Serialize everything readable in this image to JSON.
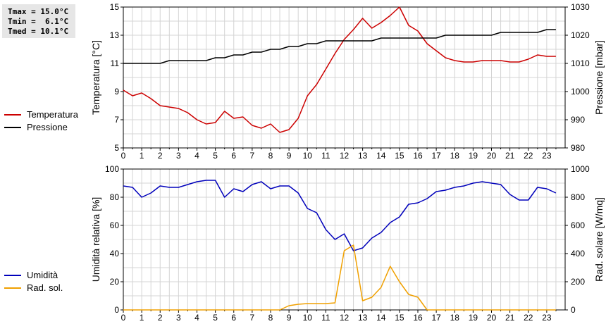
{
  "stats": {
    "tmax": "Tmax = 15.0°C",
    "tmin": "Tmin =  6.1°C",
    "tmed": "Tmed = 10.1°C"
  },
  "legend_top": [
    {
      "label": "Temperatura",
      "color": "#cc0000"
    },
    {
      "label": "Pressione",
      "color": "#000000"
    }
  ],
  "legend_bottom": [
    {
      "label": "Umidità",
      "color": "#0000bb"
    },
    {
      "label": "Rad. sol.",
      "color": "#f0a000"
    }
  ],
  "chart_data": [
    {
      "type": "line",
      "ylabel": "Temperatura [°C]",
      "y2label": "Pressione [mbar]",
      "xlim": [
        0,
        24
      ],
      "ylim": [
        5,
        15
      ],
      "y2lim": [
        980,
        1030
      ],
      "yticks": [
        "5",
        "7",
        "9",
        "11",
        "13",
        "15"
      ],
      "y2ticks": [
        "980",
        "990",
        "1000",
        "1010",
        "1020",
        "1030"
      ],
      "xticks": [
        "0",
        "1",
        "2",
        "3",
        "4",
        "5",
        "6",
        "7",
        "8",
        "9",
        "10",
        "11",
        "12",
        "13",
        "14",
        "15",
        "16",
        "17",
        "18",
        "19",
        "20",
        "21",
        "22",
        "23"
      ],
      "grid": true,
      "series": [
        {
          "name": "Temperatura",
          "axis": "left",
          "color": "#cc0000",
          "x": [
            0,
            0.5,
            1,
            1.5,
            2,
            2.5,
            3,
            3.5,
            4,
            4.5,
            5,
            5.5,
            6,
            6.5,
            7,
            7.5,
            8,
            8.5,
            9,
            9.5,
            10,
            10.5,
            11,
            11.5,
            12,
            12.5,
            13,
            13.5,
            14,
            14.5,
            15,
            15.5,
            16,
            16.5,
            17,
            17.5,
            18,
            18.5,
            19,
            19.5,
            20,
            20.5,
            21,
            21.5,
            22,
            22.5,
            23,
            23.5
          ],
          "y": [
            9.1,
            8.7,
            8.9,
            8.5,
            8.0,
            7.9,
            7.8,
            7.5,
            7.0,
            6.7,
            6.8,
            7.6,
            7.1,
            7.2,
            6.6,
            6.4,
            6.7,
            6.1,
            6.3,
            7.1,
            8.7,
            9.5,
            10.6,
            11.7,
            12.7,
            13.4,
            14.2,
            13.5,
            13.9,
            14.4,
            15.0,
            13.7,
            13.3,
            12.4,
            11.9,
            11.4,
            11.2,
            11.1,
            11.1,
            11.2,
            11.2,
            11.2,
            11.1,
            11.1,
            11.3,
            11.6,
            11.5,
            11.5
          ]
        },
        {
          "name": "Pressione",
          "axis": "right",
          "color": "#000000",
          "x": [
            0,
            0.5,
            1,
            1.5,
            2,
            2.5,
            3,
            3.5,
            4,
            4.5,
            5,
            5.5,
            6,
            6.5,
            7,
            7.5,
            8,
            8.5,
            9,
            9.5,
            10,
            10.5,
            11,
            11.5,
            12,
            12.5,
            13,
            13.5,
            14,
            14.5,
            15,
            15.5,
            16,
            16.5,
            17,
            17.5,
            18,
            18.5,
            19,
            19.5,
            20,
            20.5,
            21,
            21.5,
            22,
            22.5,
            23,
            23.5
          ],
          "y": [
            1010,
            1010,
            1010,
            1010,
            1010,
            1011,
            1011,
            1011,
            1011,
            1011,
            1012,
            1012,
            1013,
            1013,
            1014,
            1014,
            1015,
            1015,
            1016,
            1016,
            1017,
            1017,
            1018,
            1018,
            1018,
            1018,
            1018,
            1018,
            1019,
            1019,
            1019,
            1019,
            1019,
            1019,
            1019,
            1020,
            1020,
            1020,
            1020,
            1020,
            1020,
            1021,
            1021,
            1021,
            1021,
            1021,
            1022,
            1022
          ]
        }
      ]
    },
    {
      "type": "line",
      "ylabel": "Umidità relativa [%]",
      "y2label": "Rad. solare [W/mq]",
      "xlim": [
        0,
        24
      ],
      "ylim": [
        0,
        100
      ],
      "y2lim": [
        0,
        1000
      ],
      "yticks": [
        "0",
        "20",
        "40",
        "60",
        "80",
        "100"
      ],
      "y2ticks": [
        "0",
        "200",
        "400",
        "600",
        "800",
        "1000"
      ],
      "xticks": [
        "0",
        "1",
        "2",
        "3",
        "4",
        "5",
        "6",
        "7",
        "8",
        "9",
        "10",
        "11",
        "12",
        "13",
        "14",
        "15",
        "16",
        "17",
        "18",
        "19",
        "20",
        "21",
        "22",
        "23"
      ],
      "grid": true,
      "series": [
        {
          "name": "Umidità",
          "axis": "left",
          "color": "#0000bb",
          "x": [
            0,
            0.5,
            1,
            1.5,
            2,
            2.5,
            3,
            3.5,
            4,
            4.5,
            5,
            5.5,
            6,
            6.5,
            7,
            7.5,
            8,
            8.5,
            9,
            9.5,
            10,
            10.5,
            11,
            11.5,
            12,
            12.5,
            13,
            13.5,
            14,
            14.5,
            15,
            15.5,
            16,
            16.5,
            17,
            17.5,
            18,
            18.5,
            19,
            19.5,
            20,
            20.5,
            21,
            21.5,
            22,
            22.5,
            23,
            23.5
          ],
          "y": [
            88,
            87,
            80,
            83,
            88,
            87,
            87,
            89,
            91,
            92,
            92,
            80,
            86,
            84,
            89,
            91,
            86,
            88,
            88,
            83,
            72,
            69,
            57,
            50,
            54,
            42,
            44,
            51,
            55,
            62,
            66,
            75,
            76,
            79,
            84,
            85,
            87,
            88,
            90,
            91,
            90,
            89,
            82,
            78,
            78,
            87,
            86,
            83
          ]
        },
        {
          "name": "Rad. sol.",
          "axis": "right",
          "color": "#f0a000",
          "x": [
            0,
            0.5,
            1,
            1.5,
            2,
            2.5,
            3,
            3.5,
            4,
            4.5,
            5,
            5.5,
            6,
            6.5,
            7,
            7.5,
            8,
            8.5,
            9,
            9.5,
            10,
            10.5,
            11,
            11.5,
            12,
            12.5,
            13,
            13.5,
            14,
            14.5,
            15,
            15.5,
            16,
            16.5,
            17,
            17.5,
            18,
            18.5,
            19,
            19.5,
            20,
            20.5,
            21,
            21.5,
            22,
            22.5,
            23,
            23.5
          ],
          "y": [
            0,
            0,
            0,
            0,
            0,
            0,
            0,
            0,
            0,
            0,
            0,
            0,
            0,
            0,
            0,
            0,
            0,
            0,
            30,
            40,
            45,
            45,
            45,
            50,
            420,
            460,
            65,
            90,
            160,
            310,
            200,
            110,
            90,
            0,
            0,
            0,
            0,
            0,
            0,
            0,
            0,
            0,
            0,
            0,
            0,
            0,
            0,
            0
          ]
        }
      ]
    }
  ]
}
